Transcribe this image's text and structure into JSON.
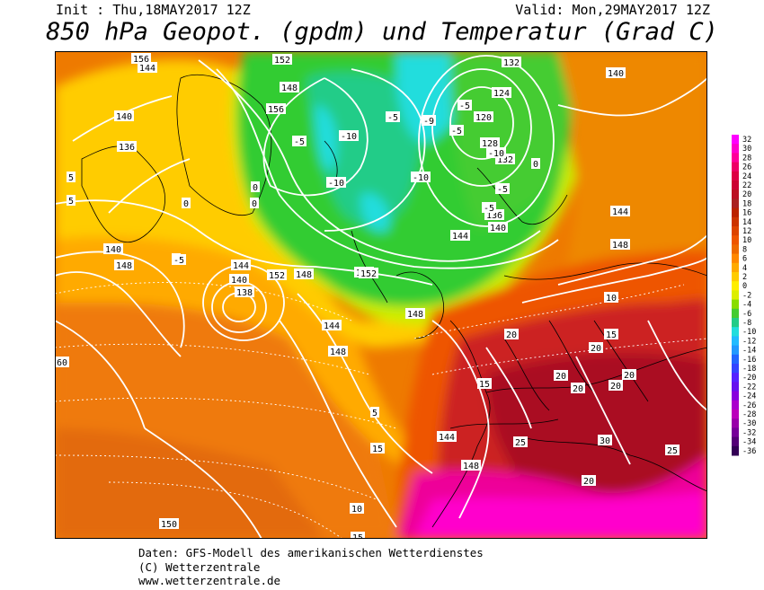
{
  "header": {
    "init": "Init : Thu,18MAY2017 12Z",
    "valid": "Valid: Mon,29MAY2017 12Z",
    "title": "850 hPa Geopot. (gpdm) und Temperatur (Grad C)"
  },
  "legend": {
    "levels": [
      "32",
      "30",
      "28",
      "26",
      "24",
      "22",
      "20",
      "18",
      "16",
      "14",
      "12",
      "10",
      "8",
      "6",
      "4",
      "2",
      "0",
      "-2",
      "-4",
      "-6",
      "-8",
      "-10",
      "-12",
      "-14",
      "-16",
      "-18",
      "-20",
      "-22",
      "-24",
      "-26",
      "-28",
      "-30",
      "-32",
      "-34",
      "-36"
    ],
    "colors": [
      "#ff00ff",
      "#ff00cc",
      "#ff0099",
      "#ee0066",
      "#dd0044",
      "#cc0033",
      "#bb1122",
      "#aa2222",
      "#bb2200",
      "#cc3300",
      "#dd4400",
      "#ee5500",
      "#ee6a00",
      "#ff8800",
      "#ffaa00",
      "#ffcc00",
      "#ffee00",
      "#ddee00",
      "#88dd00",
      "#44cc33",
      "#22cc88",
      "#22dddd",
      "#22bbff",
      "#2299ff",
      "#2266ff",
      "#3344ff",
      "#5522ff",
      "#6611ee",
      "#8800dd",
      "#aa00cc",
      "#bb00bb",
      "#9900aa",
      "#770099",
      "#550077",
      "#330055"
    ]
  },
  "map": {
    "geopotential_labels": [
      "156",
      "152",
      "148",
      "156",
      "144",
      "140",
      "136",
      "132",
      "124",
      "120",
      "128",
      "132",
      "136",
      "140",
      "144",
      "140",
      "144",
      "148",
      "152",
      "148",
      "148",
      "152",
      "144",
      "140",
      "138",
      "144",
      "148",
      "148",
      "144",
      "148",
      "150",
      "140",
      "148"
    ],
    "temperature_labels": [
      "-5",
      "-10",
      "-9",
      "-5",
      "-10",
      "0",
      "0",
      "-5",
      "-5",
      "-10",
      "-10",
      "0",
      "-5",
      "-5",
      "5",
      "5",
      "5",
      "10",
      "15",
      "20",
      "20",
      "20",
      "15",
      "20",
      "20",
      "25",
      "20",
      "25",
      "30",
      "20",
      "15",
      "10",
      "15",
      "60",
      "5",
      "0",
      "-5"
    ]
  },
  "footer": {
    "line1": "Daten: GFS-Modell des amerikanischen Wetterdienstes",
    "line2": "(C) Wetterzentrale",
    "line3": "www.wetterzentrale.de"
  }
}
